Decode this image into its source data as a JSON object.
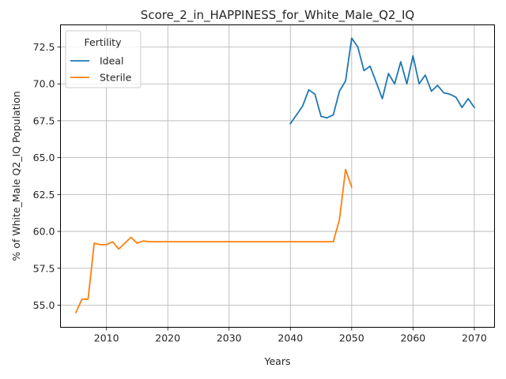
{
  "chart_data": {
    "type": "line",
    "title": "Score_2_in_HAPPINESS_for_White_Male_Q2_IQ",
    "xlabel": "Years",
    "ylabel": "% of White_Male Q2_IQ Population",
    "xlim": [
      2002.5,
      2073.3
    ],
    "ylim": [
      53.5,
      74.0
    ],
    "xticks": [
      2010,
      2020,
      2030,
      2040,
      2050,
      2060,
      2070
    ],
    "yticks": [
      55.0,
      57.5,
      60.0,
      62.5,
      65.0,
      67.5,
      70.0,
      72.5
    ],
    "grid": true,
    "legend": {
      "title": "Fertility",
      "placement": "top-left"
    },
    "series": [
      {
        "name": "Ideal",
        "color": "#1f77b4",
        "x": [
          2040,
          2041,
          2042,
          2043,
          2044,
          2045,
          2046,
          2047,
          2048,
          2049,
          2050,
          2051,
          2052,
          2053,
          2054,
          2055,
          2056,
          2057,
          2058,
          2059,
          2060,
          2061,
          2062,
          2063,
          2064,
          2065,
          2066,
          2067,
          2068,
          2069,
          2070
        ],
        "y": [
          67.3,
          67.9,
          68.5,
          69.6,
          69.3,
          67.8,
          67.7,
          67.9,
          69.5,
          70.2,
          73.1,
          72.5,
          70.9,
          71.2,
          70.1,
          69.0,
          70.7,
          70.0,
          71.5,
          70.0,
          71.9,
          70.0,
          70.6,
          69.5,
          69.9,
          69.4,
          69.3,
          69.1,
          68.4,
          69.0,
          68.4
        ]
      },
      {
        "name": "Sterile",
        "color": "#ff7f0e",
        "x": [
          2005,
          2006,
          2007,
          2008,
          2009,
          2010,
          2011,
          2012,
          2013,
          2014,
          2015,
          2016,
          2017,
          2018,
          2019,
          2020,
          2021,
          2022,
          2023,
          2024,
          2025,
          2026,
          2027,
          2028,
          2029,
          2030,
          2031,
          2032,
          2033,
          2034,
          2035,
          2036,
          2037,
          2038,
          2039,
          2040,
          2041,
          2042,
          2043,
          2044,
          2045,
          2046,
          2047,
          2048,
          2049,
          2050
        ],
        "y": [
          54.5,
          55.4,
          55.4,
          59.2,
          59.1,
          59.1,
          59.3,
          58.8,
          59.2,
          59.6,
          59.2,
          59.35,
          59.3,
          59.3,
          59.3,
          59.3,
          59.3,
          59.3,
          59.3,
          59.3,
          59.3,
          59.3,
          59.3,
          59.3,
          59.3,
          59.3,
          59.3,
          59.3,
          59.3,
          59.3,
          59.3,
          59.3,
          59.3,
          59.3,
          59.3,
          59.3,
          59.3,
          59.3,
          59.3,
          59.3,
          59.3,
          59.3,
          59.3,
          60.8,
          64.2,
          63.0
        ]
      }
    ]
  }
}
